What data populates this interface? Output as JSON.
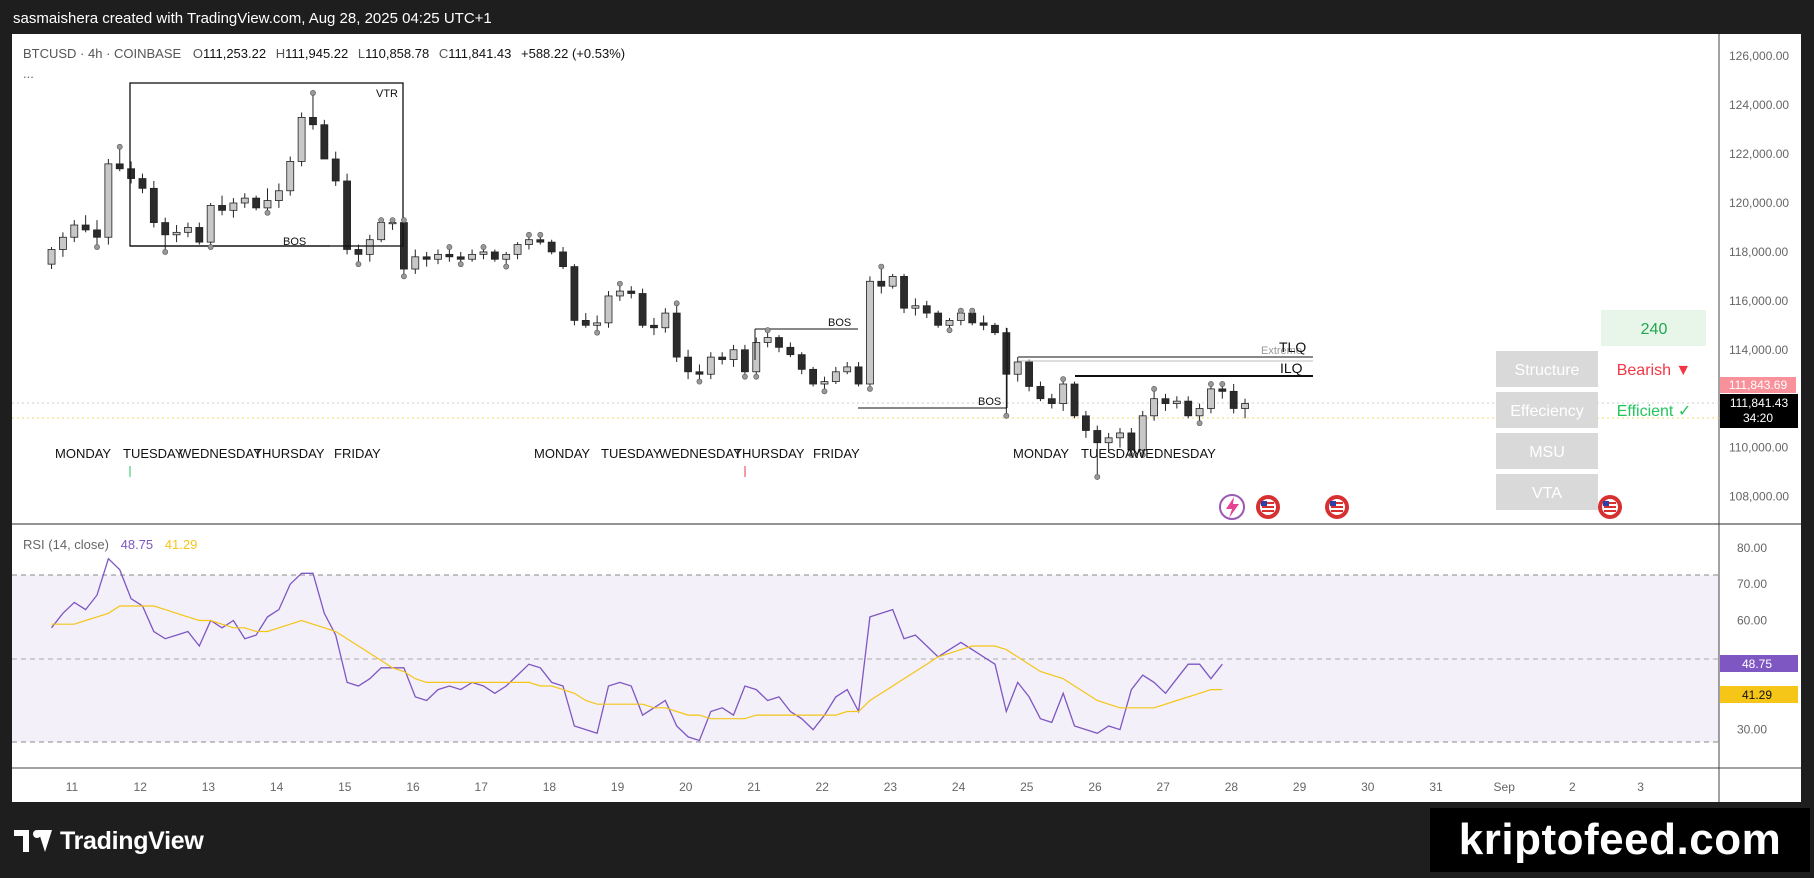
{
  "header": {
    "attribution": "sasmaishera created with TradingView.com, Aug 28, 2025 04:25 UTC+1"
  },
  "legend": {
    "symbol": "BTCUSD · 4h · COINBASE",
    "o_label": "O",
    "o_value": "111,253.22",
    "h_label": "H",
    "h_value": "111,945.22",
    "l_label": "L",
    "l_value": "110,858.78",
    "c_label": "C",
    "c_value": "111,841.43",
    "change": "+588.22 (+0.53%)",
    "more": "..."
  },
  "rsi_legend": {
    "title": "RSI (14, close)",
    "rsi_value": "48.75",
    "ma_value": "41.29"
  },
  "panel": {
    "timeframe": "240",
    "rows": [
      {
        "label": "Structure",
        "value": "Bearish ▼"
      },
      {
        "label": "Effeciency",
        "value": "Efficient ✓"
      },
      {
        "label": "MSU",
        "value": ""
      },
      {
        "label": "VTA",
        "value": ""
      }
    ]
  },
  "annotations": {
    "vtr": "VTR",
    "bos": "BOS",
    "tlq": "TLQ",
    "ilq": "ILQ",
    "extreme": "Extreme",
    "day_labels_1": [
      "MONDAY",
      "TUESDAY",
      "WEDNESDAY",
      "THURSDAY",
      "FRIDAY"
    ],
    "day_labels_2": [
      "MONDAY",
      "TUESDAY",
      "WEDNESDAY",
      "THURSDAY",
      "FRIDAY"
    ],
    "day_labels_3": [
      "MONDAY",
      "TUESDAY",
      "WEDNESDAY"
    ]
  },
  "price_tags": {
    "upper": "111,843.69",
    "current": "111,841.43",
    "countdown": "34:20",
    "rsi": "48.75",
    "rsi_ma": "41.29"
  },
  "footer": {
    "brand": "TradingView",
    "watermark": "kriptofeed.com"
  },
  "colors": {
    "up": "#c8c8c8",
    "down": "#2b2b2b",
    "bearish": "#f23645",
    "efficient": "#22c55e",
    "rsi_line": "#7e57c2",
    "rsi_ma": "#f5c518",
    "panel_grey": "#d9d9d9",
    "panel_green": "#e8f5e9"
  },
  "chart_data": [
    {
      "type": "candlestick",
      "title": "BTCUSD · 4h · COINBASE",
      "ylim": [
        107000,
        126500
      ],
      "y_ticks": [
        "108,000.00",
        "110,000.00",
        "112,000.00",
        "114,000.00",
        "116,000.00",
        "118,000.00",
        "120,000.00",
        "122,000.00",
        "124,000.00",
        "126,000.00"
      ],
      "x_ticks": [
        "11",
        "12",
        "13",
        "14",
        "15",
        "16",
        "17",
        "18",
        "19",
        "20",
        "21",
        "22",
        "23",
        "24",
        "25",
        "26",
        "27",
        "28",
        "29",
        "30",
        "31",
        "Sep",
        "2",
        "3"
      ],
      "x_start_day": 10.7,
      "bars_per_day": 6,
      "series": [
        {
          "name": "BTCUSD",
          "ohlc": [
            [
              117500,
              118200,
              117300,
              118100
            ],
            [
              118100,
              118800,
              117800,
              118600
            ],
            [
              118600,
              119300,
              118400,
              119100
            ],
            [
              119100,
              119500,
              118800,
              118900
            ],
            [
              118900,
              119300,
              118200,
              118600
            ],
            [
              118600,
              121800,
              118300,
              121600
            ],
            [
              121600,
              122300,
              121300,
              121400
            ],
            [
              121400,
              121700,
              120800,
              121000
            ],
            [
              121000,
              121200,
              120400,
              120600
            ],
            [
              120600,
              120900,
              119000,
              119200
            ],
            [
              119200,
              119400,
              118000,
              118700
            ],
            [
              118700,
              119100,
              118400,
              118800
            ],
            [
              118800,
              119200,
              118600,
              119000
            ],
            [
              119000,
              119200,
              118300,
              118400
            ],
            [
              118400,
              120000,
              118200,
              119900
            ],
            [
              119900,
              120300,
              119500,
              119700
            ],
            [
              119700,
              120200,
              119400,
              120000
            ],
            [
              120000,
              120400,
              119800,
              120200
            ],
            [
              120200,
              120300,
              119700,
              119800
            ],
            [
              119800,
              120600,
              119600,
              120100
            ],
            [
              120100,
              120800,
              119800,
              120500
            ],
            [
              120500,
              121900,
              120300,
              121700
            ],
            [
              121700,
              123700,
              121500,
              123500
            ],
            [
              123500,
              124500,
              123000,
              123200
            ],
            [
              123200,
              123400,
              121800,
              121800
            ],
            [
              121800,
              122100,
              120700,
              120900
            ],
            [
              120900,
              121200,
              117900,
              118100
            ],
            [
              118100,
              118300,
              117500,
              117900
            ],
            [
              117900,
              118700,
              117600,
              118500
            ],
            [
              118500,
              119300,
              118400,
              119200
            ],
            [
              119200,
              119300,
              118900,
              119200
            ],
            [
              119200,
              119300,
              117000,
              117300
            ],
            [
              117300,
              118100,
              117100,
              117800
            ],
            [
              117800,
              118000,
              117400,
              117700
            ],
            [
              117700,
              118100,
              117500,
              117900
            ],
            [
              117900,
              118200,
              117600,
              117800
            ],
            [
              117800,
              118000,
              117500,
              117700
            ],
            [
              117700,
              118100,
              117600,
              117900
            ],
            [
              117900,
              118200,
              117700,
              118000
            ],
            [
              118000,
              118100,
              117600,
              117700
            ],
            [
              117700,
              118000,
              117400,
              117900
            ],
            [
              117900,
              118400,
              117700,
              118300
            ],
            [
              118300,
              118700,
              118100,
              118500
            ],
            [
              118500,
              118700,
              118300,
              118400
            ],
            [
              118400,
              118500,
              117900,
              118000
            ],
            [
              118000,
              118200,
              117300,
              117400
            ],
            [
              117400,
              117500,
              115000,
              115200
            ],
            [
              115200,
              115500,
              114900,
              115000
            ],
            [
              115000,
              115400,
              114700,
              115100
            ],
            [
              115100,
              116400,
              114900,
              116200
            ],
            [
              116200,
              116700,
              116000,
              116400
            ],
            [
              116400,
              116600,
              116100,
              116300
            ],
            [
              116300,
              116500,
              114900,
              115000
            ],
            [
              115000,
              115300,
              114600,
              114900
            ],
            [
              114900,
              115700,
              114700,
              115500
            ],
            [
              115500,
              115900,
              113500,
              113700
            ],
            [
              113700,
              114000,
              112800,
              113100
            ],
            [
              113100,
              113400,
              112700,
              113000
            ],
            [
              113000,
              113900,
              112800,
              113700
            ],
            [
              113700,
              113900,
              113400,
              113600
            ],
            [
              113600,
              114200,
              113300,
              114000
            ],
            [
              114000,
              114200,
              112900,
              113100
            ],
            [
              113100,
              114500,
              112900,
              114300
            ],
            [
              114300,
              114800,
              114100,
              114500
            ],
            [
              114500,
              114600,
              113900,
              114100
            ],
            [
              114100,
              114300,
              113700,
              113800
            ],
            [
              113800,
              113900,
              113000,
              113200
            ],
            [
              113200,
              113300,
              112500,
              112600
            ],
            [
              112600,
              112900,
              112300,
              112700
            ],
            [
              112700,
              113300,
              112600,
              113100
            ],
            [
              113100,
              113500,
              113000,
              113300
            ],
            [
              113300,
              113500,
              112500,
              112600
            ],
            [
              112600,
              117000,
              112400,
              116800
            ],
            [
              116800,
              117400,
              116300,
              116600
            ],
            [
              116600,
              117100,
              116500,
              117000
            ],
            [
              117000,
              117100,
              115500,
              115700
            ],
            [
              115700,
              116100,
              115400,
              115800
            ],
            [
              115800,
              116000,
              115300,
              115500
            ],
            [
              115500,
              115600,
              114900,
              115000
            ],
            [
              115000,
              115300,
              114800,
              115200
            ],
            [
              115200,
              115600,
              115000,
              115500
            ],
            [
              115500,
              115600,
              115000,
              115100
            ],
            [
              115100,
              115400,
              114800,
              115000
            ],
            [
              115000,
              115100,
              114600,
              114700
            ],
            [
              114700,
              114900,
              111300,
              113000
            ],
            [
              113000,
              113700,
              112700,
              113500
            ],
            [
              113500,
              113600,
              112300,
              112500
            ],
            [
              112500,
              112700,
              111900,
              112000
            ],
            [
              112000,
              112200,
              111600,
              111800
            ],
            [
              111800,
              112800,
              111500,
              112600
            ],
            [
              112600,
              112700,
              111200,
              111300
            ],
            [
              111300,
              111500,
              110400,
              110700
            ],
            [
              110700,
              110900,
              108800,
              110200
            ],
            [
              110200,
              110600,
              109800,
              110400
            ],
            [
              110400,
              110800,
              110000,
              110600
            ],
            [
              110600,
              110800,
              109700,
              109900
            ],
            [
              109900,
              111500,
              109700,
              111300
            ],
            [
              111300,
              112400,
              111100,
              112000
            ],
            [
              112000,
              112200,
              111500,
              111800
            ],
            [
              111800,
              112100,
              111600,
              111900
            ],
            [
              111900,
              112100,
              111200,
              111300
            ],
            [
              111300,
              111800,
              111000,
              111600
            ],
            [
              111600,
              112600,
              111400,
              112400
            ],
            [
              112400,
              112600,
              112000,
              112300
            ],
            [
              112300,
              112600,
              111400,
              111600
            ],
            [
              111600,
              112000,
              111200,
              111800
            ]
          ]
        }
      ]
    },
    {
      "type": "line",
      "title": "RSI (14, close)",
      "ylim": [
        20,
        86
      ],
      "y_ticks": [
        "30.00",
        "60.00",
        "70.00",
        "80.00"
      ],
      "bands": [
        70,
        50,
        30
      ],
      "series": [
        {
          "name": "RSI",
          "values": [
            58,
            62,
            65,
            63,
            67,
            77,
            74,
            66,
            64,
            57,
            55,
            56,
            57,
            53,
            60,
            58,
            60,
            55,
            56,
            61,
            63,
            70,
            73,
            73,
            62,
            56,
            43,
            42,
            44,
            47,
            47,
            47,
            39,
            38,
            41,
            42,
            41,
            43,
            42,
            40,
            42,
            45,
            48,
            47,
            43,
            42,
            31,
            30,
            29,
            42,
            43,
            42,
            34,
            36,
            38,
            31,
            28,
            27,
            35,
            36,
            34,
            42,
            41,
            38,
            39,
            35,
            33,
            30,
            34,
            39,
            41,
            35,
            61,
            62,
            63,
            55,
            56,
            53,
            50,
            52,
            54,
            52,
            50,
            48,
            35,
            43,
            39,
            33,
            32,
            40,
            31,
            30,
            29,
            31,
            30,
            41,
            45,
            43,
            40,
            44,
            48,
            48,
            44,
            48
          ]
        },
        {
          "name": "RSI-based MA",
          "values": [
            59,
            59,
            59,
            60,
            61,
            62,
            64,
            64,
            64,
            64,
            63,
            62,
            61,
            60,
            60,
            59,
            58,
            58,
            57,
            57,
            58,
            59,
            60,
            59,
            58,
            57,
            55,
            53,
            51,
            49,
            47,
            46,
            44,
            43,
            43,
            43,
            43,
            43,
            43,
            43,
            43,
            43,
            43,
            42,
            42,
            41,
            40,
            38,
            37,
            37,
            37,
            37,
            37,
            36,
            36,
            35,
            34,
            34,
            33,
            33,
            33,
            33,
            34,
            34,
            34,
            34,
            34,
            34,
            34,
            34,
            35,
            35,
            38,
            40,
            42,
            44,
            46,
            48,
            50,
            51,
            52,
            53,
            53,
            53,
            52,
            50,
            48,
            46,
            45,
            44,
            42,
            40,
            38,
            37,
            36,
            36,
            36,
            36,
            37,
            38,
            39,
            40,
            41,
            41
          ]
        }
      ]
    }
  ]
}
